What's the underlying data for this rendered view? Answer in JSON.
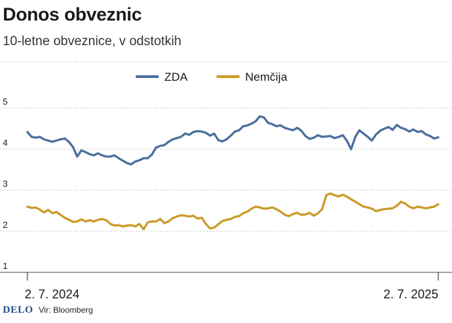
{
  "header": {
    "title": "Donos obveznic",
    "subtitle": "10-letne obveznice, v odstotkih"
  },
  "footer": {
    "brand": "DELO",
    "source": "Vir: Bloomberg"
  },
  "chart_data": {
    "type": "line",
    "title": "Donos obveznic",
    "subtitle": "10-letne obveznice, v odstotkih",
    "xlabel": "",
    "ylabel": "",
    "ylim": [
      1,
      5
    ],
    "yticks": [
      "1",
      "2",
      "3",
      "4",
      "5"
    ],
    "xticks": [
      "2. 7. 2024",
      "2. 7. 2025"
    ],
    "grid": true,
    "legend_position": "top-center",
    "x_start": "2024-07-02",
    "x_end": "2025-07-02",
    "series": [
      {
        "name": "ZDA",
        "color": "#4a6f9e",
        "values": [
          4.42,
          4.3,
          4.28,
          4.3,
          4.24,
          4.21,
          4.18,
          4.21,
          4.24,
          4.26,
          4.18,
          4.05,
          3.82,
          3.97,
          3.93,
          3.88,
          3.85,
          3.9,
          3.85,
          3.82,
          3.82,
          3.85,
          3.78,
          3.72,
          3.66,
          3.63,
          3.7,
          3.73,
          3.78,
          3.78,
          3.87,
          4.04,
          4.08,
          4.1,
          4.18,
          4.24,
          4.27,
          4.3,
          4.38,
          4.35,
          4.42,
          4.44,
          4.43,
          4.4,
          4.33,
          4.38,
          4.22,
          4.19,
          4.24,
          4.33,
          4.43,
          4.46,
          4.56,
          4.58,
          4.62,
          4.68,
          4.8,
          4.77,
          4.64,
          4.61,
          4.56,
          4.58,
          4.52,
          4.49,
          4.46,
          4.52,
          4.45,
          4.32,
          4.25,
          4.28,
          4.34,
          4.3,
          4.31,
          4.32,
          4.27,
          4.3,
          4.34,
          4.2,
          4.0,
          4.3,
          4.46,
          4.38,
          4.3,
          4.21,
          4.36,
          4.45,
          4.5,
          4.54,
          4.47,
          4.59,
          4.52,
          4.49,
          4.43,
          4.48,
          4.42,
          4.44,
          4.36,
          4.32,
          4.26,
          4.29
        ]
      },
      {
        "name": "Nemčija",
        "color": "#cc9a2a",
        "values": [
          2.6,
          2.57,
          2.58,
          2.53,
          2.46,
          2.52,
          2.44,
          2.47,
          2.4,
          2.33,
          2.28,
          2.23,
          2.24,
          2.29,
          2.24,
          2.27,
          2.24,
          2.28,
          2.3,
          2.27,
          2.18,
          2.14,
          2.15,
          2.12,
          2.14,
          2.15,
          2.12,
          2.18,
          2.05,
          2.22,
          2.24,
          2.24,
          2.3,
          2.2,
          2.24,
          2.32,
          2.36,
          2.39,
          2.38,
          2.36,
          2.38,
          2.31,
          2.33,
          2.18,
          2.07,
          2.09,
          2.17,
          2.25,
          2.28,
          2.3,
          2.35,
          2.37,
          2.44,
          2.48,
          2.55,
          2.6,
          2.58,
          2.55,
          2.56,
          2.58,
          2.54,
          2.48,
          2.4,
          2.37,
          2.42,
          2.45,
          2.4,
          2.41,
          2.45,
          2.38,
          2.44,
          2.54,
          2.88,
          2.92,
          2.88,
          2.85,
          2.89,
          2.84,
          2.78,
          2.72,
          2.66,
          2.6,
          2.58,
          2.55,
          2.49,
          2.52,
          2.54,
          2.55,
          2.56,
          2.62,
          2.72,
          2.68,
          2.6,
          2.56,
          2.6,
          2.58,
          2.56,
          2.58,
          2.6,
          2.66
        ]
      }
    ]
  }
}
